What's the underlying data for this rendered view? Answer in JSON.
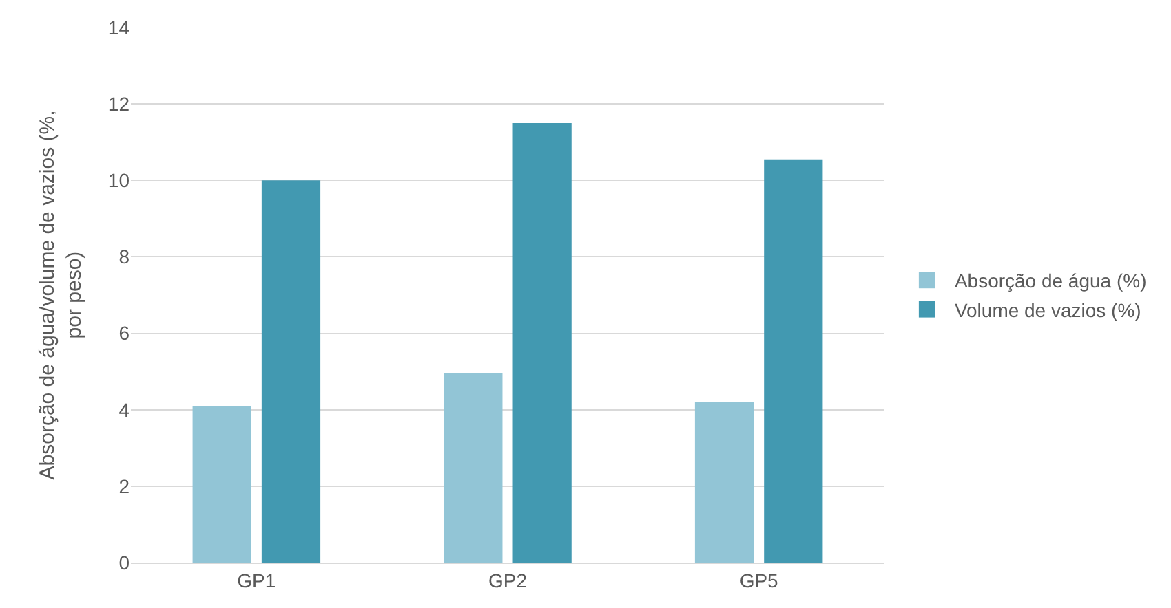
{
  "chart_data": {
    "type": "bar",
    "ylabel": "Absorção de água/volume de vazios (%,\npor peso)",
    "categories": [
      "GP1",
      "GP2",
      "GP5"
    ],
    "series": [
      {
        "name": "Absorção de água (%)",
        "color": "#92c5d6",
        "values": [
          4.1,
          4.95,
          4.2
        ]
      },
      {
        "name": "Volume de vazios (%)",
        "color": "#4299b1",
        "values": [
          10.0,
          11.5,
          10.55
        ]
      }
    ],
    "ylim": [
      0,
      14
    ],
    "yticks": [
      0,
      2,
      4,
      6,
      8,
      10,
      12,
      14
    ],
    "grid": "y",
    "legend": "right"
  }
}
